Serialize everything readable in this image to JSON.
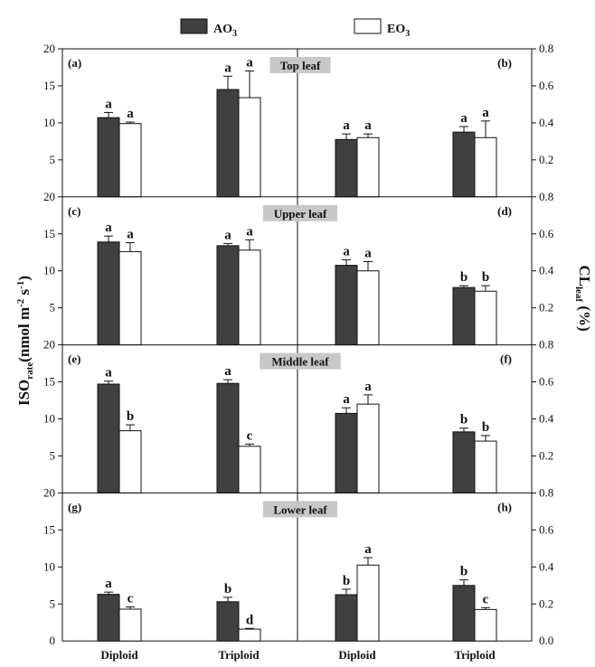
{
  "chart_data": {
    "type": "bar",
    "legend": [
      {
        "name": "AO",
        "sub": "3",
        "color": "#404040"
      },
      {
        "name": "EO",
        "sub": "3",
        "color": "#ffffff"
      }
    ],
    "categories": [
      "Diploid",
      "Triploid",
      "Diploid",
      "Triploid"
    ],
    "ylabel_left": {
      "main": "ISO",
      "sub": "rate",
      "rest": "(nmol m",
      "sup1": "-2",
      "mid": " s",
      "sup2": "-1",
      "end": ")"
    },
    "ylabel_right": {
      "main": "CL",
      "sub": "leaf",
      "rest": "  (%)"
    },
    "left_ticks": [
      "5",
      "10",
      "15",
      "20"
    ],
    "right_ticks": [
      "0.2",
      "0.4",
      "0.6",
      "0.8"
    ],
    "bottom_left_zero": "0",
    "bottom_right_zero": "0.0",
    "ylim_left": [
      0,
      20
    ],
    "ylim_right": [
      0,
      0.8
    ],
    "panels": [
      {
        "row": 0,
        "title": "Top leaf",
        "left_label": "(a)",
        "right_label": "(b)",
        "groups": [
          {
            "side": "left",
            "ao": 10.7,
            "ao_err": 0.7,
            "eo": 9.9,
            "eo_err": 0.2,
            "ao_sig": "a",
            "eo_sig": "a"
          },
          {
            "side": "left",
            "ao": 14.5,
            "ao_err": 1.8,
            "eo": 13.4,
            "eo_err": 3.6,
            "ao_sig": "a",
            "eo_sig": "a"
          },
          {
            "side": "right",
            "ao": 0.31,
            "ao_err": 0.03,
            "eo": 0.32,
            "eo_err": 0.02,
            "ao_sig": "a",
            "eo_sig": "a"
          },
          {
            "side": "right",
            "ao": 0.35,
            "ao_err": 0.03,
            "eo": 0.32,
            "eo_err": 0.09,
            "ao_sig": "a",
            "eo_sig": "a"
          }
        ]
      },
      {
        "row": 1,
        "title": "Upper leaf",
        "left_label": "(c)",
        "right_label": "(d)",
        "groups": [
          {
            "side": "left",
            "ao": 13.9,
            "ao_err": 0.8,
            "eo": 12.6,
            "eo_err": 1.2,
            "ao_sig": "a",
            "eo_sig": "a"
          },
          {
            "side": "left",
            "ao": 13.4,
            "ao_err": 0.3,
            "eo": 12.8,
            "eo_err": 1.4,
            "ao_sig": "a",
            "eo_sig": "a"
          },
          {
            "side": "right",
            "ao": 0.43,
            "ao_err": 0.03,
            "eo": 0.4,
            "eo_err": 0.05,
            "ao_sig": "a",
            "eo_sig": "a"
          },
          {
            "side": "right",
            "ao": 0.31,
            "ao_err": 0.01,
            "eo": 0.29,
            "eo_err": 0.03,
            "ao_sig": "b",
            "eo_sig": "b"
          }
        ]
      },
      {
        "row": 2,
        "title": "Middle leaf",
        "left_label": "(e)",
        "right_label": "(f)",
        "groups": [
          {
            "side": "left",
            "ao": 14.7,
            "ao_err": 0.4,
            "eo": 8.4,
            "eo_err": 0.8,
            "ao_sig": "a",
            "eo_sig": "b"
          },
          {
            "side": "left",
            "ao": 14.8,
            "ao_err": 0.5,
            "eo": 6.3,
            "eo_err": 0.3,
            "ao_sig": "a",
            "eo_sig": "c"
          },
          {
            "side": "right",
            "ao": 0.43,
            "ao_err": 0.03,
            "eo": 0.48,
            "eo_err": 0.05,
            "ao_sig": "a",
            "eo_sig": "a"
          },
          {
            "side": "right",
            "ao": 0.33,
            "ao_err": 0.02,
            "eo": 0.28,
            "eo_err": 0.03,
            "ao_sig": "b",
            "eo_sig": "b"
          }
        ]
      },
      {
        "row": 3,
        "title": "Lower leaf",
        "left_label": "(g)",
        "right_label": "(h)",
        "groups": [
          {
            "side": "left",
            "ao": 6.3,
            "ao_err": 0.3,
            "eo": 4.3,
            "eo_err": 0.3,
            "ao_sig": "a",
            "eo_sig": "c"
          },
          {
            "side": "left",
            "ao": 5.3,
            "ao_err": 0.6,
            "eo": 1.6,
            "eo_err": 0.1,
            "ao_sig": "b",
            "eo_sig": "d"
          },
          {
            "side": "right",
            "ao": 0.25,
            "ao_err": 0.03,
            "eo": 0.41,
            "eo_err": 0.04,
            "ao_sig": "b",
            "eo_sig": "a"
          },
          {
            "side": "right",
            "ao": 0.3,
            "ao_err": 0.03,
            "eo": 0.17,
            "eo_err": 0.01,
            "ao_sig": "b",
            "eo_sig": "c"
          }
        ]
      }
    ]
  }
}
